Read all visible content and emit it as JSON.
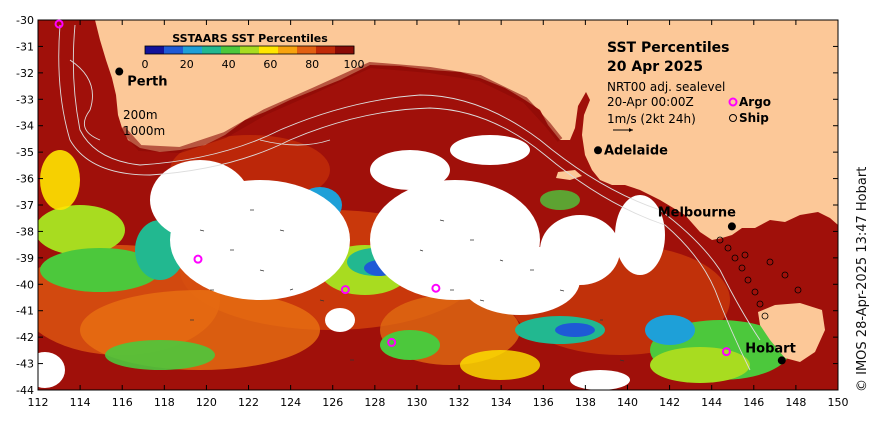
{
  "map": {
    "title": "SST Percentiles",
    "date": "20 Apr 2025",
    "subtitle": "NRT00 adj. sealevel",
    "time": "20-Apr 00:00Z",
    "vector_scale": "1m/s (2kt 24h)",
    "legend_argo": "Argo",
    "legend_ship": "Ship",
    "isobath_200": "200m",
    "isobath_1000": "1000m",
    "credit": "© IMOS 28-Apr-2025 13:47 Hobart"
  },
  "colorbar": {
    "title": "SSTAARS SST Percentiles",
    "ticks": [
      "0",
      "20",
      "40",
      "60",
      "80",
      "100"
    ],
    "colors": [
      "#12129a",
      "#1e5ad6",
      "#1ea0d8",
      "#22b890",
      "#4cc83c",
      "#a8dc20",
      "#ffe600",
      "#f7a30e",
      "#e26012",
      "#c02a08",
      "#8a0a05"
    ]
  },
  "axes": {
    "lon_labels": [
      "112",
      "114",
      "116",
      "118",
      "120",
      "122",
      "124",
      "126",
      "128",
      "130",
      "132",
      "134",
      "136",
      "138",
      "140",
      "142",
      "144",
      "146",
      "148",
      "150"
    ],
    "lat_labels": [
      "-30",
      "-31",
      "-32",
      "-33",
      "-34",
      "-35",
      "-36",
      "-37",
      "-38",
      "-39",
      "-40",
      "-41",
      "-42",
      "-43",
      "-44"
    ]
  },
  "cities": [
    {
      "name": "Perth",
      "lon": 115.86,
      "lat": -31.95
    },
    {
      "name": "Adelaide",
      "lon": 138.6,
      "lat": -34.93
    },
    {
      "name": "Melbourne",
      "lon": 144.96,
      "lat": -37.81
    },
    {
      "name": "Hobart",
      "lon": 147.33,
      "lat": -42.88
    }
  ],
  "argo_floats": [
    {
      "lon": 113.0,
      "lat": -30.15
    },
    {
      "lon": 119.6,
      "lat": -39.05
    },
    {
      "lon": 126.6,
      "lat": -40.2
    },
    {
      "lon": 128.8,
      "lat": -42.2
    },
    {
      "lon": 130.9,
      "lat": -40.15
    },
    {
      "lon": 144.7,
      "lat": -42.55
    }
  ],
  "colors": {
    "land": "#fcc898",
    "frame": "#000000",
    "argo": "#ff00ff",
    "cold_patch": "#1e5ad6",
    "nodata": "#ffffff"
  }
}
